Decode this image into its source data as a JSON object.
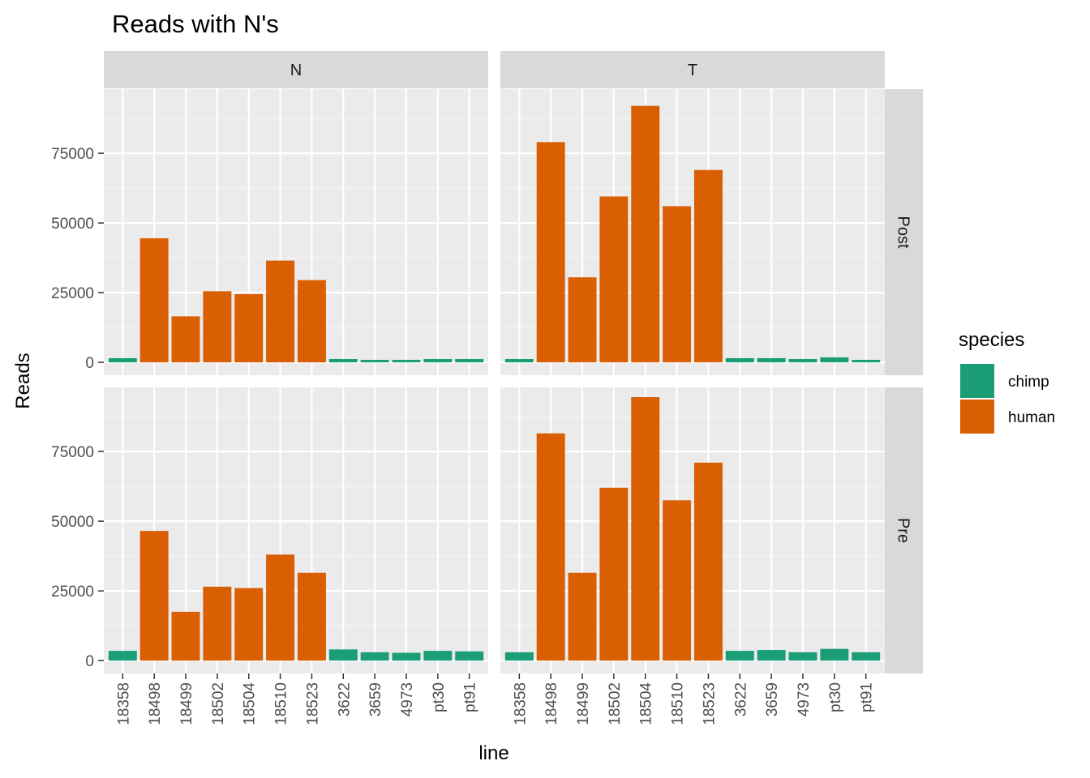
{
  "chart_data": {
    "type": "bar",
    "title": "Reads with N's",
    "xlabel": "line",
    "ylabel": "Reads",
    "ylim": [
      0,
      98000
    ],
    "yticks": [
      0,
      25000,
      50000,
      75000
    ],
    "yticks_text": [
      "0",
      "25000",
      "50000",
      "75000"
    ],
    "categories": [
      "18358",
      "18498",
      "18499",
      "18502",
      "18504",
      "18510",
      "18523",
      "3622",
      "3659",
      "4973",
      "pt30",
      "pt91"
    ],
    "category_species": [
      "chimp",
      "human",
      "human",
      "human",
      "human",
      "human",
      "human",
      "chimp",
      "chimp",
      "chimp",
      "chimp",
      "chimp"
    ],
    "facet_cols": [
      "N",
      "T"
    ],
    "facet_rows": [
      "Post",
      "Pre"
    ],
    "colors": {
      "chimp": "#1b9e77",
      "human": "#d95f02"
    },
    "legend": {
      "title": "species",
      "entries": [
        {
          "label": "chimp",
          "color": "#1b9e77"
        },
        {
          "label": "human",
          "color": "#d95f02"
        }
      ]
    },
    "panels": [
      {
        "col": "N",
        "row": "Post",
        "values": [
          1500,
          44500,
          16500,
          25500,
          24500,
          36500,
          29500,
          1200,
          900,
          900,
          1200,
          1200
        ]
      },
      {
        "col": "T",
        "row": "Post",
        "values": [
          1200,
          79000,
          30500,
          59500,
          92000,
          56000,
          69000,
          1500,
          1500,
          1200,
          1800,
          900
        ]
      },
      {
        "col": "N",
        "row": "Pre",
        "values": [
          3500,
          46500,
          17500,
          26500,
          26000,
          38000,
          31500,
          4000,
          3000,
          2800,
          3500,
          3300
        ]
      },
      {
        "col": "T",
        "row": "Pre",
        "values": [
          3000,
          81500,
          31500,
          62000,
          94500,
          57500,
          71000,
          3500,
          3800,
          3000,
          4200,
          3000
        ]
      }
    ]
  }
}
